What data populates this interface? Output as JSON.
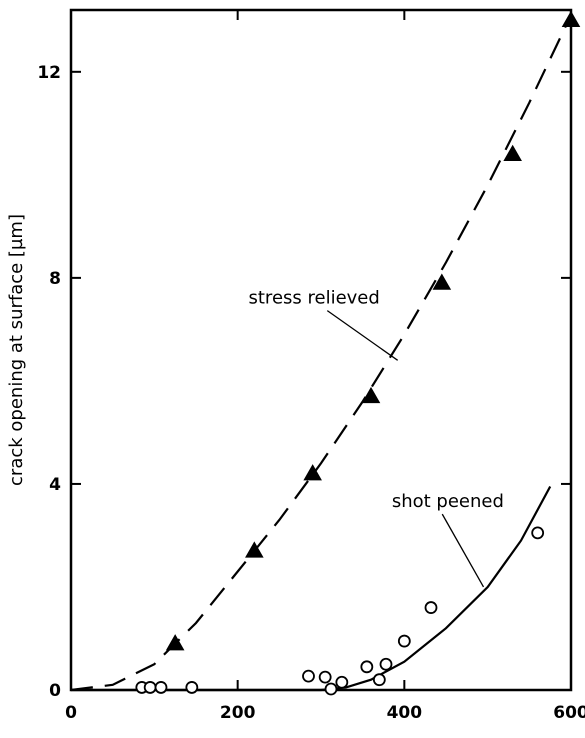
{
  "chart_data": {
    "type": "scatter",
    "title": "",
    "xlabel": "",
    "ylabel": "crack opening at surface [µm]",
    "xlim": [
      0,
      600
    ],
    "ylim": [
      0,
      13.2
    ],
    "xticks": [
      0,
      200,
      400,
      600
    ],
    "yticks": [
      0,
      4,
      8,
      12
    ],
    "grid": false,
    "legend": "none",
    "series": [
      {
        "marker": "triangle",
        "filled": true,
        "line_style": "dashed",
        "points": [
          {
            "x": 125,
            "y": 0.9
          },
          {
            "x": 220,
            "y": 2.7
          },
          {
            "x": 290,
            "y": 4.2
          },
          {
            "x": 360,
            "y": 5.7
          },
          {
            "x": 445,
            "y": 7.9
          },
          {
            "x": 530,
            "y": 10.4
          },
          {
            "x": 600,
            "y": 13.0
          }
        ],
        "fit_curve": [
          {
            "x": 0,
            "y": 0.0
          },
          {
            "x": 50,
            "y": 0.1
          },
          {
            "x": 100,
            "y": 0.5
          },
          {
            "x": 150,
            "y": 1.3
          },
          {
            "x": 200,
            "y": 2.3
          },
          {
            "x": 250,
            "y": 3.3
          },
          {
            "x": 300,
            "y": 4.4
          },
          {
            "x": 350,
            "y": 5.6
          },
          {
            "x": 400,
            "y": 6.9
          },
          {
            "x": 450,
            "y": 8.3
          },
          {
            "x": 500,
            "y": 9.8
          },
          {
            "x": 550,
            "y": 11.4
          },
          {
            "x": 600,
            "y": 13.1
          }
        ]
      },
      {
        "marker": "circle",
        "filled": false,
        "line_style": "solid",
        "points": [
          {
            "x": 85,
            "y": 0.05
          },
          {
            "x": 95,
            "y": 0.05
          },
          {
            "x": 108,
            "y": 0.05
          },
          {
            "x": 145,
            "y": 0.05
          },
          {
            "x": 285,
            "y": 0.27
          },
          {
            "x": 305,
            "y": 0.25
          },
          {
            "x": 312,
            "y": 0.02
          },
          {
            "x": 325,
            "y": 0.15
          },
          {
            "x": 355,
            "y": 0.45
          },
          {
            "x": 370,
            "y": 0.2
          },
          {
            "x": 378,
            "y": 0.5
          },
          {
            "x": 400,
            "y": 0.95
          },
          {
            "x": 432,
            "y": 1.6
          },
          {
            "x": 560,
            "y": 3.05
          }
        ],
        "fit_curve": [
          {
            "x": 0,
            "y": 0.0
          },
          {
            "x": 100,
            "y": 0.0
          },
          {
            "x": 200,
            "y": 0.0
          },
          {
            "x": 300,
            "y": 0.0
          },
          {
            "x": 330,
            "y": 0.05
          },
          {
            "x": 360,
            "y": 0.2
          },
          {
            "x": 400,
            "y": 0.55
          },
          {
            "x": 450,
            "y": 1.2
          },
          {
            "x": 500,
            "y": 2.0
          },
          {
            "x": 540,
            "y": 2.9
          },
          {
            "x": 575,
            "y": 3.95
          }
        ]
      }
    ],
    "annotations": [
      {
        "text": "stress relieved",
        "series_index": 0,
        "anchor": {
          "x": 213,
          "y": 7.5
        },
        "leader_to": {
          "x": 392,
          "y": 6.4
        }
      },
      {
        "text": "shot peened",
        "series_index": 1,
        "anchor": {
          "x": 385,
          "y": 3.55
        },
        "leader_to": {
          "x": 495,
          "y": 2.0
        }
      }
    ]
  }
}
